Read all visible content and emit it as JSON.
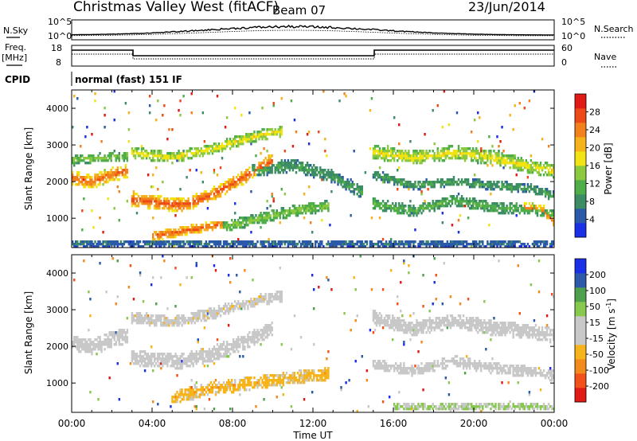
{
  "header": {
    "station": "Christmas Valley West (fitACF)",
    "beam": "Beam 07",
    "date": "23/Jun/2014"
  },
  "top_panels": {
    "nsky_label": "N.Sky",
    "nsky_ticks": [
      "10^5",
      "10^0"
    ],
    "nsearch_label": "N.Search",
    "nsearch_ticks": [
      "10^5",
      "10^0"
    ],
    "freq_label_1": "Freq.",
    "freq_label_2": "[MHz]",
    "freq_ticks": [
      "18",
      "8"
    ],
    "nave_label": "Nave",
    "nave_ticks": [
      "60",
      "0"
    ],
    "cpid_label": "CPID",
    "cpid_value": "normal (fast) 151 IF"
  },
  "colors": {
    "power": [
      "#1a2fe6",
      "#2b5aa8",
      "#3c8c64",
      "#4fae49",
      "#8bc93f",
      "#f2e313",
      "#f6b21a",
      "#f2801d",
      "#ee4a17",
      "#e01a14"
    ],
    "velocity": [
      "#e01a14",
      "#f0521a",
      "#f38a1d",
      "#f6b31a",
      "#c8c8c8",
      "#c8c8c8",
      "#86c94d",
      "#4fa04c",
      "#2d5aa8",
      "#1a2fe6"
    ]
  },
  "chart_data": [
    {
      "type": "heatmap",
      "name": "power",
      "ylabel": "Slant Range [km]",
      "yticks": [
        "1000",
        "2000",
        "3000",
        "4000"
      ],
      "ylim": [
        200,
        4500
      ],
      "xlim": [
        0,
        24
      ],
      "colorbar_label": "Power [dB]",
      "colorbar_ticks": [
        "4",
        "8",
        "12",
        "16",
        "20",
        "24",
        "28"
      ],
      "color_range": [
        0,
        32
      ],
      "bands": [
        {
          "x": [
            0,
            1,
            2,
            2.8
          ],
          "y": [
            2100,
            2000,
            2200,
            2300
          ],
          "w": 380,
          "v": 26
        },
        {
          "x": [
            0,
            2.8
          ],
          "y": [
            2600,
            2700
          ],
          "w": 250,
          "v": 14
        },
        {
          "x": [
            3,
            4,
            5.5,
            7,
            8.5,
            10
          ],
          "y": [
            1500,
            1450,
            1350,
            1650,
            2100,
            2600
          ],
          "w": 380,
          "v": 27
        },
        {
          "x": [
            3,
            5,
            7,
            8.5,
            10,
            10.5
          ],
          "y": [
            2800,
            2650,
            2900,
            3150,
            3350,
            3350
          ],
          "w": 300,
          "v": 18
        },
        {
          "x": [
            7.5,
            9,
            11,
            12.8
          ],
          "y": [
            750,
            950,
            1200,
            1350
          ],
          "w": 300,
          "v": 14
        },
        {
          "x": [
            4,
            6,
            7.5
          ],
          "y": [
            500,
            700,
            850
          ],
          "w": 250,
          "v": 27
        },
        {
          "x": [
            9,
            11,
            13,
            14.5
          ],
          "y": [
            2300,
            2450,
            2150,
            1700
          ],
          "w": 350,
          "v": 10
        },
        {
          "x": [
            15,
            17,
            19,
            21,
            23,
            24
          ],
          "y": [
            2800,
            2650,
            2800,
            2650,
            2400,
            2300
          ],
          "w": 380,
          "v": 18
        },
        {
          "x": [
            15,
            17,
            19,
            21,
            23,
            24
          ],
          "y": [
            2200,
            1900,
            2000,
            1900,
            1800,
            1600
          ],
          "w": 250,
          "v": 10
        },
        {
          "x": [
            15,
            17,
            19,
            21,
            23,
            24
          ],
          "y": [
            1400,
            1200,
            1500,
            1300,
            1250,
            1100
          ],
          "w": 300,
          "v": 12
        },
        {
          "x": [
            22.5,
            23.5,
            24
          ],
          "y": [
            1300,
            1200,
            900
          ],
          "w": 300,
          "v": 25
        },
        {
          "x": [
            0,
            24
          ],
          "y": [
            320,
            320
          ],
          "w": 200,
          "v": 6
        }
      ]
    },
    {
      "type": "heatmap",
      "name": "velocity",
      "ylabel": "Slant Range [km]",
      "yticks": [
        "1000",
        "2000",
        "3000",
        "4000"
      ],
      "ylim": [
        200,
        4500
      ],
      "xlim": [
        0,
        24
      ],
      "xticks": [
        "00:00",
        "04:00",
        "08:00",
        "12:00",
        "16:00",
        "20:00",
        "00:00"
      ],
      "xlabel": "Time UT",
      "colorbar_label": "Velocity [m s^-1]",
      "colorbar_ticks": [
        "-200",
        "-100",
        "-50",
        "-15",
        "15",
        "50",
        "100",
        "200"
      ],
      "color_range": [
        -250,
        250
      ],
      "bands": [
        {
          "x": [
            0,
            1,
            2,
            2.8
          ],
          "y": [
            2100,
            2000,
            2200,
            2300
          ],
          "w": 420,
          "v": 0
        },
        {
          "x": [
            3,
            4,
            5.5,
            7,
            8.5,
            10
          ],
          "y": [
            1700,
            1650,
            1600,
            1800,
            2100,
            2500
          ],
          "w": 420,
          "v": 0
        },
        {
          "x": [
            3,
            5,
            7,
            8.5,
            10,
            10.5
          ],
          "y": [
            2800,
            2650,
            2900,
            3150,
            3350,
            3350
          ],
          "w": 320,
          "v": -30
        },
        {
          "x": [
            5,
            7,
            9,
            11,
            12.8
          ],
          "y": [
            600,
            850,
            1000,
            1150,
            1250
          ],
          "w": 350,
          "v": -80
        },
        {
          "x": [
            15,
            17,
            19,
            21,
            23,
            24
          ],
          "y": [
            2800,
            2500,
            2700,
            2500,
            2400,
            2300
          ],
          "w": 400,
          "v": 0
        },
        {
          "x": [
            15,
            17,
            19,
            21,
            23,
            24
          ],
          "y": [
            1500,
            1350,
            1600,
            1400,
            1300,
            1200
          ],
          "w": 300,
          "v": 0
        },
        {
          "x": [
            16,
            24
          ],
          "y": [
            350,
            350
          ],
          "w": 200,
          "v": 60
        }
      ]
    }
  ]
}
